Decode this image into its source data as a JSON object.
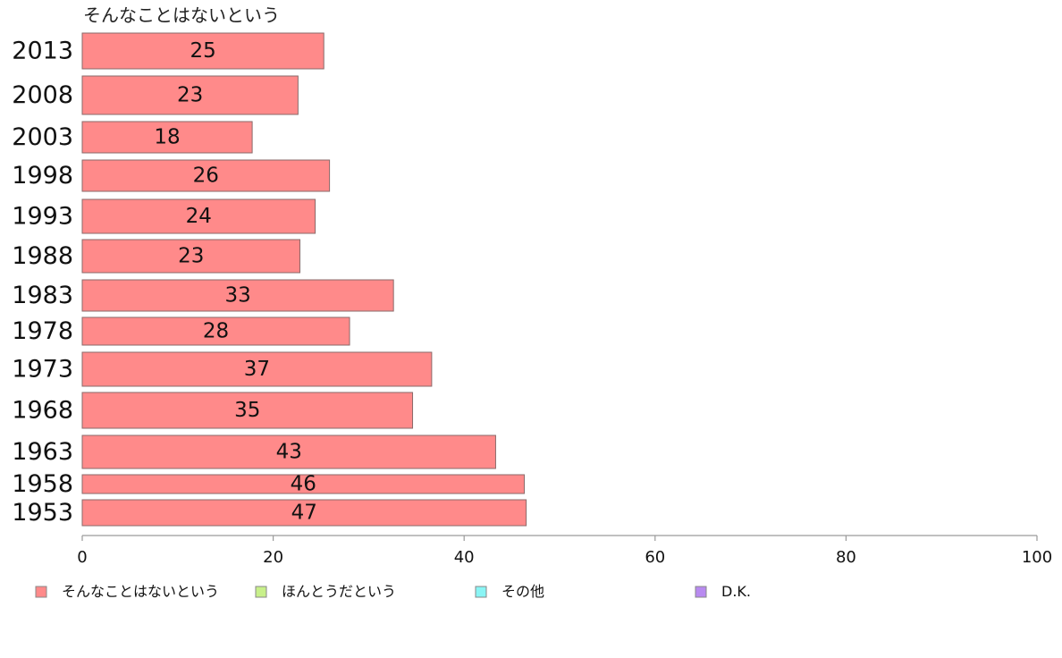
{
  "chart_data": {
    "type": "bar",
    "orientation": "horizontal",
    "title": "",
    "series_title": "そんなことはないという",
    "categories": [
      "2013",
      "2008",
      "2003",
      "1998",
      "1993",
      "1988",
      "1983",
      "1978",
      "1973",
      "1968",
      "1963",
      "1958",
      "1953"
    ],
    "series": [
      {
        "name": "そんなことはないという",
        "color": "#ff8a8a",
        "values": [
          25,
          23,
          18,
          26,
          24,
          23,
          33,
          28,
          37,
          35,
          43,
          46,
          47
        ],
        "bar_extent": [
          25.3,
          22.6,
          17.8,
          25.9,
          24.4,
          22.8,
          32.6,
          28.0,
          36.6,
          34.6,
          43.3,
          46.3,
          46.5
        ]
      }
    ],
    "xlim": [
      0,
      100
    ],
    "xticks": [
      0,
      20,
      40,
      60,
      80,
      100
    ],
    "xlabel": "",
    "ylabel": "",
    "grid": false,
    "legend_position": "bottom",
    "legend": [
      {
        "label": "そんなことはないという",
        "color": "#ff8a8a"
      },
      {
        "label": "ほんとうだという",
        "color": "#c8f08a"
      },
      {
        "label": "その他",
        "color": "#8af5f5"
      },
      {
        "label": "D.K.",
        "color": "#b88af0"
      }
    ]
  }
}
